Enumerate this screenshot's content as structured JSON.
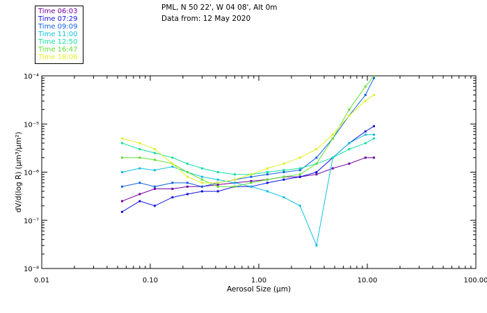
{
  "header": {
    "location": "PML, N 50 22', W 04 08', Alt 0m",
    "date": "Data from: 12 May 2020"
  },
  "chart_data": {
    "type": "line",
    "title": "PML, N 50 22', W 04 08', Alt 0m",
    "subtitle": "Data from: 12 May 2020",
    "xlabel": "Aerosol Size (μm)",
    "ylabel": "dV/d(log R) (μm³/μm²)",
    "xscale": "log",
    "yscale": "log",
    "xlim": [
      0.01,
      100
    ],
    "ylim": [
      1e-08,
      0.0001
    ],
    "x_tick_labels": [
      "0.01",
      "0.10",
      "1.00",
      "10.00",
      "100.00"
    ],
    "y_tick_labels": [
      "10⁻⁸",
      "10⁻⁷",
      "10⁻⁶",
      "10⁻⁵",
      "10⁻⁴"
    ],
    "x": [
      0.055,
      0.08,
      0.11,
      0.16,
      0.22,
      0.3,
      0.42,
      0.6,
      0.85,
      1.2,
      1.7,
      2.4,
      3.4,
      4.8,
      6.8,
      9.6,
      11.5
    ],
    "series": [
      {
        "name": "Time 06:03",
        "color": "#7000a0",
        "values": [
          2.5e-07,
          3.5e-07,
          4.5e-07,
          4.5e-07,
          5e-07,
          5e-07,
          5.5e-07,
          6e-07,
          6.5e-07,
          7e-07,
          8e-07,
          8e-07,
          9e-07,
          1.2e-06,
          1.5e-06,
          2e-06,
          2e-06
        ]
      },
      {
        "name": "Time 07:29",
        "color": "#1010e0",
        "values": [
          1.5e-07,
          2.5e-07,
          2e-07,
          3e-07,
          3.5e-07,
          4e-07,
          4e-07,
          5e-07,
          5e-07,
          6e-07,
          7e-07,
          8e-07,
          1e-06,
          2e-06,
          4e-06,
          7e-06,
          9e-06
        ]
      },
      {
        "name": "Time 09:09",
        "color": "#1060e0",
        "values": [
          5e-07,
          6e-07,
          5e-07,
          6e-07,
          6e-07,
          5e-07,
          6e-07,
          7e-07,
          8e-07,
          9e-07,
          1e-06,
          1.1e-06,
          2e-06,
          5e-06,
          1.5e-05,
          4e-05,
          9e-05
        ]
      },
      {
        "name": "Time 11:00",
        "color": "#10c0e0",
        "values": [
          1e-06,
          1.2e-06,
          1.1e-06,
          1.3e-06,
          1e-06,
          8e-07,
          7e-07,
          6e-07,
          5e-07,
          4e-07,
          3e-07,
          2e-07,
          3e-08,
          2e-06,
          4e-06,
          6e-06,
          6e-06
        ]
      },
      {
        "name": "Time 12:50",
        "color": "#10e0a0",
        "values": [
          4e-06,
          3e-06,
          2.5e-06,
          2e-06,
          1.5e-06,
          1.2e-06,
          1e-06,
          9e-07,
          9e-07,
          1e-06,
          1.1e-06,
          1.2e-06,
          1.5e-06,
          2e-06,
          3e-06,
          4e-06,
          5e-06
        ]
      },
      {
        "name": "Time 16:47",
        "color": "#60e030",
        "values": [
          2e-06,
          2e-06,
          1.8e-06,
          1.5e-06,
          1e-06,
          7e-07,
          5e-07,
          5e-07,
          6e-07,
          7e-07,
          8e-07,
          9e-07,
          1.5e-06,
          5e-06,
          2e-05,
          6e-05,
          0.0001
        ]
      },
      {
        "name": "Time 18:06",
        "color": "#e0f020",
        "values": [
          5e-06,
          4e-06,
          3e-06,
          1.5e-06,
          8e-07,
          6e-07,
          6e-07,
          7e-07,
          9e-07,
          1.2e-06,
          1.5e-06,
          2e-06,
          3e-06,
          6e-06,
          1.5e-05,
          3e-05,
          4e-05
        ]
      }
    ]
  }
}
